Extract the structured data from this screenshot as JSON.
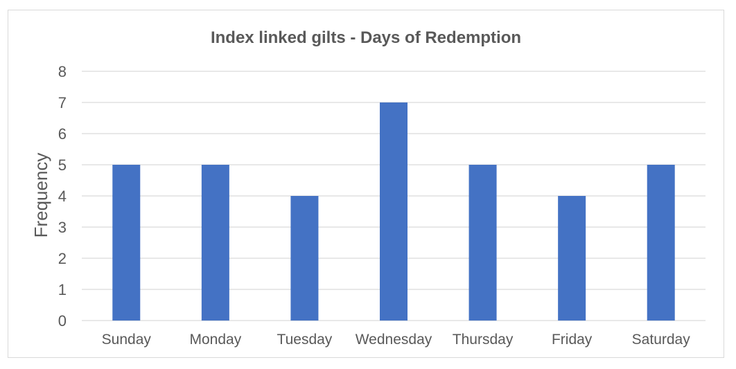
{
  "chart_data": {
    "type": "bar",
    "title": "Index linked gilts - Days of Redemption",
    "xlabel": "",
    "ylabel": "Frequency",
    "categories": [
      "Sunday",
      "Monday",
      "Tuesday",
      "Wednesday",
      "Thursday",
      "Friday",
      "Saturday"
    ],
    "values": [
      5,
      5,
      4,
      7,
      5,
      4,
      5
    ],
    "ylim": [
      0,
      8
    ],
    "yticks": [
      "0",
      "1",
      "2",
      "3",
      "4",
      "5",
      "6",
      "7",
      "8"
    ],
    "grid": true,
    "legend": "none",
    "colors": {
      "bar": "#4472C4",
      "grid": "#d9d9d9",
      "text": "#595959"
    }
  }
}
